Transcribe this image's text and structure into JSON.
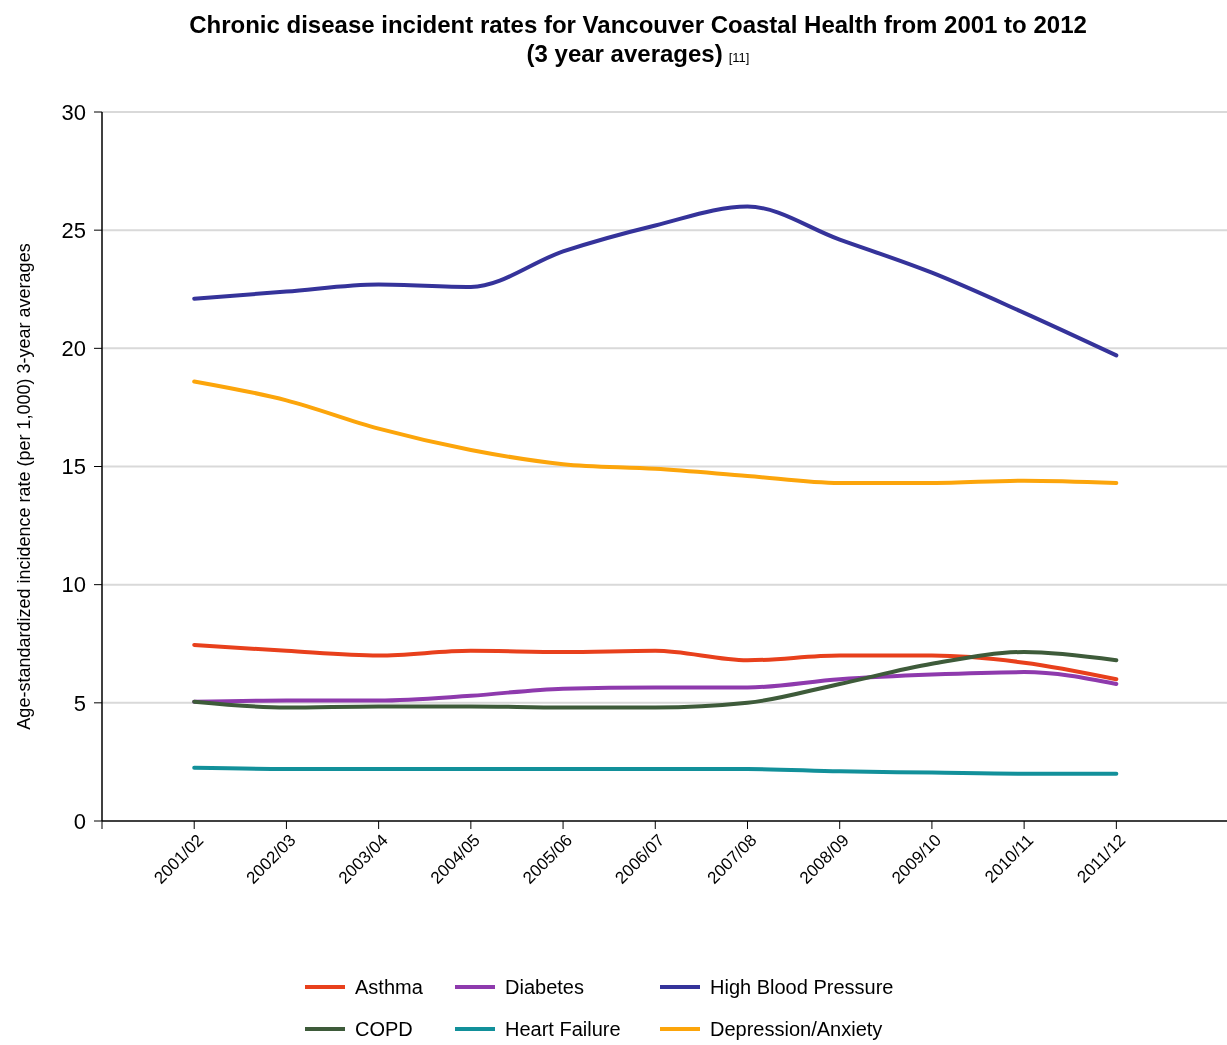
{
  "chart_data": {
    "type": "line",
    "title": "Chronic disease incident rates for Vancouver Coastal Health from 2001 to 2012\n(3 year averages)",
    "annotations": [
      "[11]"
    ],
    "ylabel": "Age-standardized incidence rate  (per 1,000)  3-year averages",
    "categories": [
      "2001/02",
      "2002/03",
      "2003/04",
      "2004/05",
      "2005/06",
      "2006/07",
      "2007/08",
      "2008/09",
      "2009/10",
      "2010/11",
      "2011/12"
    ],
    "series": [
      {
        "name": "Asthma",
        "color": "#e8401c",
        "values": [
          7.45,
          7.2,
          7.0,
          7.2,
          7.15,
          7.2,
          6.8,
          7.0,
          7.0,
          6.7,
          6.0
        ]
      },
      {
        "name": "Diabetes",
        "color": "#8e3aad",
        "values": [
          5.05,
          5.1,
          5.1,
          5.3,
          5.6,
          5.65,
          5.65,
          6.0,
          6.2,
          6.3,
          5.8
        ]
      },
      {
        "name": "High Blood Pressure",
        "color": "#35339a",
        "values": [
          22.1,
          22.4,
          22.7,
          22.6,
          24.1,
          25.2,
          26.0,
          24.6,
          23.2,
          21.5,
          19.7
        ]
      },
      {
        "name": "COPD",
        "color": "#3e5b3a",
        "values": [
          5.05,
          4.8,
          4.85,
          4.85,
          4.8,
          4.8,
          5.0,
          5.8,
          6.65,
          7.15,
          6.8
        ]
      },
      {
        "name": "Heart Failure",
        "color": "#12909a",
        "values": [
          2.25,
          2.2,
          2.2,
          2.2,
          2.2,
          2.2,
          2.2,
          2.1,
          2.05,
          2.0,
          2.0
        ]
      },
      {
        "name": "Depression/Anxiety",
        "color": "#fca50b",
        "values": [
          18.6,
          17.8,
          16.6,
          15.7,
          15.1,
          14.9,
          14.6,
          14.3,
          14.3,
          14.4,
          14.3
        ]
      }
    ],
    "ylim": [
      0,
      30
    ],
    "yticks": [
      0,
      5,
      10,
      15,
      20,
      25,
      30
    ],
    "grid": "y",
    "legend": "bottom",
    "line_style": "solid",
    "marker": "none"
  }
}
